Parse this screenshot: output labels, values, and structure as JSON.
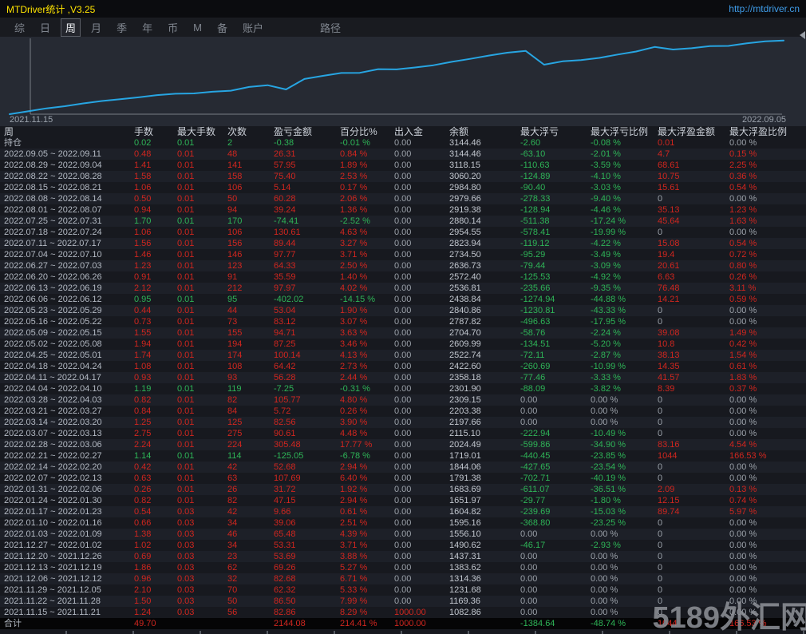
{
  "title_bar": {
    "title": "MTDriver统计 ,V3.25",
    "url": "http://mtdriver.cn"
  },
  "menu": {
    "items": [
      "综",
      "日",
      "周",
      "月",
      "季",
      "年",
      "币",
      "M",
      "备",
      "账户"
    ],
    "active": "周",
    "path_label": "路径"
  },
  "chart_data": {
    "type": "line",
    "title": "",
    "x_start_label": "2021.11.15",
    "x_end_label": "2022.09.05",
    "xlabel": "",
    "ylabel": "余额",
    "ylim": [
      1000,
      3160
    ],
    "grid": false,
    "legend_position": "none",
    "line_color": "#27a5e2",
    "series": [
      {
        "name": "余额",
        "values": [
          1000.0,
          1082.86,
          1169.36,
          1231.68,
          1314.36,
          1383.62,
          1437.31,
          1490.62,
          1556.1,
          1595.16,
          1604.82,
          1651.97,
          1683.69,
          1791.38,
          1844.06,
          1719.01,
          2024.49,
          2115.1,
          2197.66,
          2203.38,
          2309.15,
          2301.9,
          2358.18,
          2422.6,
          2522.74,
          2609.99,
          2704.7,
          2787.82,
          2840.86,
          2438.84,
          2536.81,
          2572.4,
          2636.73,
          2734.5,
          2823.94,
          2954.55,
          2880.14,
          2919.38,
          2979.66,
          2984.8,
          3060.2,
          3118.15,
          3144.46
        ]
      }
    ]
  },
  "table": {
    "headers": [
      "周",
      "手数",
      "最大手数",
      "次数",
      "盈亏金额",
      "百分比%",
      "出入金",
      "余额",
      "最大浮亏",
      "最大浮亏比例",
      "最大浮盈金额",
      "最大浮盈比例"
    ],
    "position_row": [
      "持仓",
      "0.02",
      "0.01",
      "2",
      "-0.38",
      "-0.01 %",
      "0.00",
      "3144.46",
      "-2.60",
      "-0.08 %",
      "0.01",
      "0.00 %"
    ],
    "rows": [
      [
        "2022.09.05 ~ 2022.09.11",
        "0.48",
        "0.01",
        "48",
        "26.31",
        "0.84 %",
        "0.00",
        "3144.46",
        "-63.10",
        "-2.01 %",
        "4.7",
        "0.15 %"
      ],
      [
        "2022.08.29 ~ 2022.09.04",
        "1.41",
        "0.01",
        "141",
        "57.95",
        "1.89 %",
        "0.00",
        "3118.15",
        "-110.63",
        "-3.59 %",
        "68.61",
        "2.25 %"
      ],
      [
        "2022.08.22 ~ 2022.08.28",
        "1.58",
        "0.01",
        "158",
        "75.40",
        "2.53 %",
        "0.00",
        "3060.20",
        "-124.89",
        "-4.10 %",
        "10.75",
        "0.36 %"
      ],
      [
        "2022.08.15 ~ 2022.08.21",
        "1.06",
        "0.01",
        "106",
        "5.14",
        "0.17 %",
        "0.00",
        "2984.80",
        "-90.40",
        "-3.03 %",
        "15.61",
        "0.54 %"
      ],
      [
        "2022.08.08 ~ 2022.08.14",
        "0.50",
        "0.01",
        "50",
        "60.28",
        "2.06 %",
        "0.00",
        "2979.66",
        "-278.33",
        "-9.40 %",
        "0",
        "0.00 %"
      ],
      [
        "2022.08.01 ~ 2022.08.07",
        "0.94",
        "0.01",
        "94",
        "39.24",
        "1.36 %",
        "0.00",
        "2919.38",
        "-128.94",
        "-4.46 %",
        "35.13",
        "1.23 %"
      ],
      [
        "2022.07.25 ~ 2022.07.31",
        "1.70",
        "0.01",
        "170",
        "-74.41",
        "-2.52 %",
        "0.00",
        "2880.14",
        "-511.38",
        "-17.24 %",
        "45.64",
        "1.63 %"
      ],
      [
        "2022.07.18 ~ 2022.07.24",
        "1.06",
        "0.01",
        "106",
        "130.61",
        "4.63 %",
        "0.00",
        "2954.55",
        "-578.41",
        "-19.99 %",
        "0",
        "0.00 %"
      ],
      [
        "2022.07.11 ~ 2022.07.17",
        "1.56",
        "0.01",
        "156",
        "89.44",
        "3.27 %",
        "0.00",
        "2823.94",
        "-119.12",
        "-4.22 %",
        "15.08",
        "0.54 %"
      ],
      [
        "2022.07.04 ~ 2022.07.10",
        "1.46",
        "0.01",
        "146",
        "97.77",
        "3.71 %",
        "0.00",
        "2734.50",
        "-95.29",
        "-3.49 %",
        "19.4",
        "0.72 %"
      ],
      [
        "2022.06.27 ~ 2022.07.03",
        "1.23",
        "0.01",
        "123",
        "64.33",
        "2.50 %",
        "0.00",
        "2636.73",
        "-79.44",
        "-3.09 %",
        "20.61",
        "0.80 %"
      ],
      [
        "2022.06.20 ~ 2022.06.26",
        "0.91",
        "0.01",
        "91",
        "35.59",
        "1.40 %",
        "0.00",
        "2572.40",
        "-125.53",
        "-4.92 %",
        "6.63",
        "0.26 %"
      ],
      [
        "2022.06.13 ~ 2022.06.19",
        "2.12",
        "0.01",
        "212",
        "97.97",
        "4.02 %",
        "0.00",
        "2536.81",
        "-235.66",
        "-9.35 %",
        "76.48",
        "3.11 %"
      ],
      [
        "2022.06.06 ~ 2022.06.12",
        "0.95",
        "0.01",
        "95",
        "-402.02",
        "-14.15 %",
        "0.00",
        "2438.84",
        "-1274.94",
        "-44.88 %",
        "14.21",
        "0.59 %"
      ],
      [
        "2022.05.23 ~ 2022.05.29",
        "0.44",
        "0.01",
        "44",
        "53.04",
        "1.90 %",
        "0.00",
        "2840.86",
        "-1230.81",
        "-43.33 %",
        "0",
        "0.00 %"
      ],
      [
        "2022.05.16 ~ 2022.05.22",
        "0.73",
        "0.01",
        "73",
        "83.12",
        "3.07 %",
        "0.00",
        "2787.82",
        "-496.63",
        "-17.95 %",
        "0",
        "0.00 %"
      ],
      [
        "2022.05.09 ~ 2022.05.15",
        "1.55",
        "0.01",
        "155",
        "94.71",
        "3.63 %",
        "0.00",
        "2704.70",
        "-58.76",
        "-2.24 %",
        "39.08",
        "1.49 %"
      ],
      [
        "2022.05.02 ~ 2022.05.08",
        "1.94",
        "0.01",
        "194",
        "87.25",
        "3.46 %",
        "0.00",
        "2609.99",
        "-134.51",
        "-5.20 %",
        "10.8",
        "0.42 %"
      ],
      [
        "2022.04.25 ~ 2022.05.01",
        "1.74",
        "0.01",
        "174",
        "100.14",
        "4.13 %",
        "0.00",
        "2522.74",
        "-72.11",
        "-2.87 %",
        "38.13",
        "1.54 %"
      ],
      [
        "2022.04.18 ~ 2022.04.24",
        "1.08",
        "0.01",
        "108",
        "64.42",
        "2.73 %",
        "0.00",
        "2422.60",
        "-260.69",
        "-10.99 %",
        "14.35",
        "0.61 %"
      ],
      [
        "2022.04.11 ~ 2022.04.17",
        "0.93",
        "0.01",
        "93",
        "56.28",
        "2.44 %",
        "0.00",
        "2358.18",
        "-77.46",
        "-3.33 %",
        "41.57",
        "1.83 %"
      ],
      [
        "2022.04.04 ~ 2022.04.10",
        "1.19",
        "0.01",
        "119",
        "-7.25",
        "-0.31 %",
        "0.00",
        "2301.90",
        "-88.09",
        "-3.82 %",
        "8.39",
        "0.37 %"
      ],
      [
        "2022.03.28 ~ 2022.04.03",
        "0.82",
        "0.01",
        "82",
        "105.77",
        "4.80 %",
        "0.00",
        "2309.15",
        "0.00",
        "0.00 %",
        "0",
        "0.00 %"
      ],
      [
        "2022.03.21 ~ 2022.03.27",
        "0.84",
        "0.01",
        "84",
        "5.72",
        "0.26 %",
        "0.00",
        "2203.38",
        "0.00",
        "0.00 %",
        "0",
        "0.00 %"
      ],
      [
        "2022.03.14 ~ 2022.03.20",
        "1.25",
        "0.01",
        "125",
        "82.56",
        "3.90 %",
        "0.00",
        "2197.66",
        "0.00",
        "0.00 %",
        "0",
        "0.00 %"
      ],
      [
        "2022.03.07 ~ 2022.03.13",
        "2.75",
        "0.01",
        "275",
        "90.61",
        "4.48 %",
        "0.00",
        "2115.10",
        "-222.94",
        "-10.49 %",
        "0",
        "0.00 %"
      ],
      [
        "2022.02.28 ~ 2022.03.06",
        "2.24",
        "0.01",
        "224",
        "305.48",
        "17.77 %",
        "0.00",
        "2024.49",
        "-599.86",
        "-34.90 %",
        "83.16",
        "4.54 %"
      ],
      [
        "2022.02.21 ~ 2022.02.27",
        "1.14",
        "0.01",
        "114",
        "-125.05",
        "-6.78 %",
        "0.00",
        "1719.01",
        "-440.45",
        "-23.85 %",
        "1044",
        "166.53 %"
      ],
      [
        "2022.02.14 ~ 2022.02.20",
        "0.42",
        "0.01",
        "42",
        "52.68",
        "2.94 %",
        "0.00",
        "1844.06",
        "-427.65",
        "-23.54 %",
        "0",
        "0.00 %"
      ],
      [
        "2022.02.07 ~ 2022.02.13",
        "0.63",
        "0.01",
        "63",
        "107.69",
        "6.40 %",
        "0.00",
        "1791.38",
        "-702.71",
        "-40.19 %",
        "0",
        "0.00 %"
      ],
      [
        "2022.01.31 ~ 2022.02.06",
        "0.26",
        "0.01",
        "26",
        "31.72",
        "1.92 %",
        "0.00",
        "1683.69",
        "-611.07",
        "-36.51 %",
        "2.09",
        "0.13 %"
      ],
      [
        "2022.01.24 ~ 2022.01.30",
        "0.82",
        "0.01",
        "82",
        "47.15",
        "2.94 %",
        "0.00",
        "1651.97",
        "-29.77",
        "-1.80 %",
        "12.15",
        "0.74 %"
      ],
      [
        "2022.01.17 ~ 2022.01.23",
        "0.54",
        "0.03",
        "42",
        "9.66",
        "0.61 %",
        "0.00",
        "1604.82",
        "-239.69",
        "-15.03 %",
        "89.74",
        "5.97 %"
      ],
      [
        "2022.01.10 ~ 2022.01.16",
        "0.66",
        "0.03",
        "34",
        "39.06",
        "2.51 %",
        "0.00",
        "1595.16",
        "-368.80",
        "-23.25 %",
        "0",
        "0.00 %"
      ],
      [
        "2022.01.03 ~ 2022.01.09",
        "1.38",
        "0.03",
        "46",
        "65.48",
        "4.39 %",
        "0.00",
        "1556.10",
        "0.00",
        "0.00 %",
        "0",
        "0.00 %"
      ],
      [
        "2021.12.27 ~ 2022.01.02",
        "1.02",
        "0.03",
        "34",
        "53.31",
        "3.71 %",
        "0.00",
        "1490.62",
        "-46.17",
        "-2.93 %",
        "0",
        "0.00 %"
      ],
      [
        "2021.12.20 ~ 2021.12.26",
        "0.69",
        "0.03",
        "23",
        "53.69",
        "3.88 %",
        "0.00",
        "1437.31",
        "0.00",
        "0.00 %",
        "0",
        "0.00 %"
      ],
      [
        "2021.12.13 ~ 2021.12.19",
        "1.86",
        "0.03",
        "62",
        "69.26",
        "5.27 %",
        "0.00",
        "1383.62",
        "0.00",
        "0.00 %",
        "0",
        "0.00 %"
      ],
      [
        "2021.12.06 ~ 2021.12.12",
        "0.96",
        "0.03",
        "32",
        "82.68",
        "6.71 %",
        "0.00",
        "1314.36",
        "0.00",
        "0.00 %",
        "0",
        "0.00 %"
      ],
      [
        "2021.11.29 ~ 2021.12.05",
        "2.10",
        "0.03",
        "70",
        "62.32",
        "5.33 %",
        "0.00",
        "1231.68",
        "0.00",
        "0.00 %",
        "0",
        "0.00 %"
      ],
      [
        "2021.11.22 ~ 2021.11.28",
        "1.50",
        "0.03",
        "50",
        "86.50",
        "7.99 %",
        "0.00",
        "1169.36",
        "0.00",
        "0.00 %",
        "0",
        "0.00 %"
      ],
      [
        "2021.11.15 ~ 2021.11.21",
        "1.24",
        "0.03",
        "56",
        "82.86",
        "8.29 %",
        "1000.00",
        "1082.86",
        "0.00",
        "0.00 %",
        "0",
        "0.00 %"
      ]
    ],
    "total_row": [
      "合计",
      "49.70",
      "",
      "",
      "2144.08",
      "214.41 %",
      "1000.00",
      "",
      "-1384.64",
      "-48.74 %",
      "1044",
      "166.53 %"
    ]
  },
  "watermark": "5189外汇网",
  "colors": {
    "gain": "#d0261f",
    "loss": "#2eb457",
    "neutral": "#9aa0a8",
    "title": "#ffe400",
    "link": "#3f9ce8",
    "chart_line": "#27a5e2",
    "chart_bg": "#262a33",
    "total_row_bg": "#050506"
  }
}
